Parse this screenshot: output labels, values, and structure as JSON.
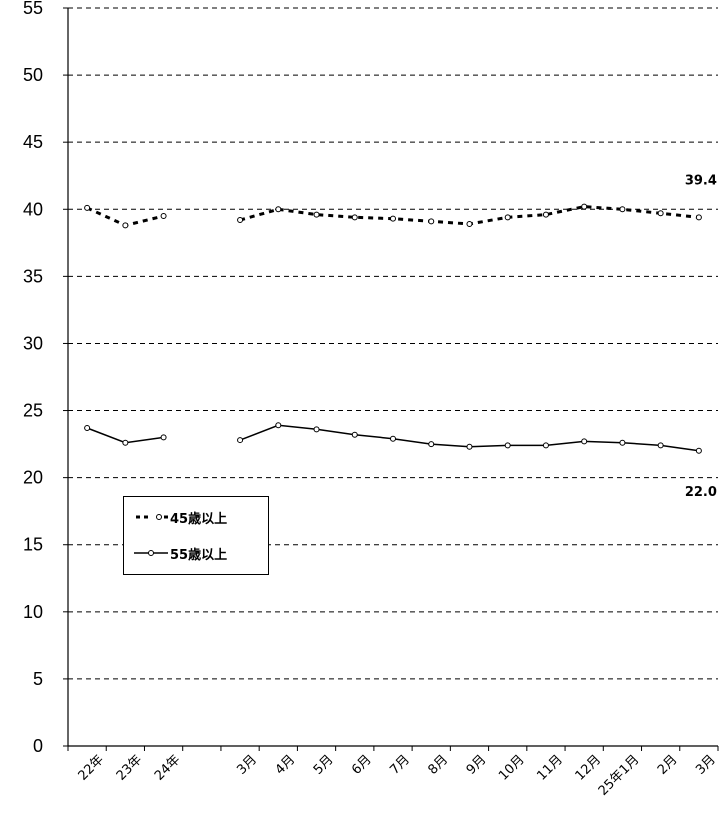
{
  "chart_data": {
    "type": "line",
    "title": "",
    "xlabel": "",
    "ylabel": "",
    "ylim": [
      0,
      55
    ],
    "yticks": [
      0,
      5,
      10,
      15,
      20,
      25,
      30,
      35,
      40,
      45,
      50,
      55
    ],
    "grid": "horizontal dashed",
    "legend_position": "left-middle",
    "categories": [
      "22年",
      "23年",
      "24年",
      "",
      "3月",
      "4月",
      "5月",
      "6月",
      "7月",
      "8月",
      "9月",
      "10月",
      "11月",
      "12月",
      "25年1月",
      "2月",
      "3月"
    ],
    "series": [
      {
        "name": "45歳以上",
        "style": "dashed",
        "color": "#000000",
        "segments": [
          [
            [
              0,
              40.1
            ],
            [
              1,
              38.8
            ],
            [
              2,
              39.5
            ]
          ],
          [
            [
              4,
              39.2
            ],
            [
              5,
              40.0
            ],
            [
              6,
              39.6
            ],
            [
              7,
              39.4
            ],
            [
              8,
              39.3
            ],
            [
              9,
              39.1
            ],
            [
              10,
              38.9
            ],
            [
              11,
              39.4
            ],
            [
              12,
              39.6
            ],
            [
              13,
              40.2
            ],
            [
              14,
              40.0
            ],
            [
              15,
              39.7
            ],
            [
              16,
              39.4
            ]
          ]
        ],
        "end_label": "39.4"
      },
      {
        "name": "55歳以上",
        "style": "solid",
        "color": "#000000",
        "segments": [
          [
            [
              0,
              23.7
            ],
            [
              1,
              22.6
            ],
            [
              2,
              23.0
            ]
          ],
          [
            [
              4,
              22.8
            ],
            [
              5,
              23.9
            ],
            [
              6,
              23.6
            ],
            [
              7,
              23.2
            ],
            [
              8,
              22.9
            ],
            [
              9,
              22.5
            ],
            [
              10,
              22.3
            ],
            [
              11,
              22.4
            ],
            [
              12,
              22.4
            ],
            [
              13,
              22.7
            ],
            [
              14,
              22.6
            ],
            [
              15,
              22.4
            ],
            [
              16,
              22.0
            ]
          ]
        ],
        "end_label": "22.0"
      }
    ]
  }
}
